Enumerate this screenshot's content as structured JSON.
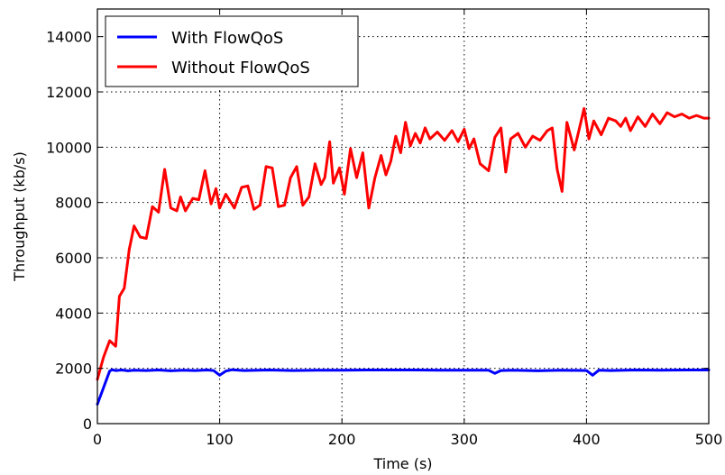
{
  "chart_data": {
    "type": "line",
    "title": "",
    "xlabel": "Time (s)",
    "ylabel": "Throughput (kb/s)",
    "xlim": [
      0,
      500
    ],
    "ylim": [
      0,
      15000
    ],
    "xticks": [
      0,
      100,
      200,
      300,
      400,
      500
    ],
    "yticks": [
      0,
      2000,
      4000,
      6000,
      8000,
      10000,
      12000,
      14000
    ],
    "xtick_labels": [
      "0",
      "100",
      "200",
      "300",
      "400",
      "500"
    ],
    "ytick_labels": [
      "0",
      "2000",
      "4000",
      "6000",
      "8000",
      "10000",
      "12000",
      "14000"
    ],
    "grid": true,
    "legend_position": "top-left",
    "series": [
      {
        "name": "With FlowQoS",
        "color": "#0000ff",
        "x": [
          0,
          5,
          10,
          12,
          15,
          20,
          25,
          30,
          40,
          50,
          60,
          70,
          80,
          90,
          95,
          100,
          105,
          110,
          120,
          140,
          160,
          180,
          200,
          220,
          240,
          260,
          280,
          300,
          320,
          325,
          330,
          340,
          360,
          380,
          400,
          405,
          410,
          420,
          440,
          460,
          480,
          500
        ],
        "y": [
          700,
          1300,
          1900,
          1950,
          1920,
          1940,
          1910,
          1930,
          1920,
          1940,
          1910,
          1930,
          1920,
          1940,
          1920,
          1750,
          1900,
          1950,
          1920,
          1940,
          1920,
          1930,
          1930,
          1940,
          1940,
          1940,
          1930,
          1930,
          1930,
          1820,
          1920,
          1930,
          1910,
          1930,
          1920,
          1750,
          1930,
          1920,
          1940,
          1930,
          1940,
          1940
        ]
      },
      {
        "name": "Without FlowQoS",
        "color": "#ff0000",
        "x": [
          0,
          5,
          10,
          15,
          18,
          22,
          26,
          30,
          35,
          40,
          45,
          50,
          55,
          60,
          65,
          68,
          72,
          78,
          83,
          88,
          93,
          97,
          100,
          105,
          112,
          118,
          123,
          128,
          133,
          138,
          143,
          148,
          153,
          158,
          163,
          168,
          173,
          178,
          183,
          186,
          190,
          193,
          198,
          202,
          207,
          212,
          217,
          222,
          227,
          232,
          236,
          240,
          244,
          248,
          252,
          256,
          260,
          264,
          268,
          272,
          278,
          284,
          290,
          295,
          300,
          304,
          308,
          313,
          320,
          325,
          330,
          334,
          338,
          344,
          350,
          356,
          362,
          368,
          372,
          376,
          380,
          384,
          390,
          394,
          398,
          402,
          406,
          412,
          418,
          424,
          428,
          432,
          436,
          442,
          448,
          454,
          460,
          466,
          472,
          478,
          484,
          490,
          496,
          500
        ],
        "y": [
          1600,
          2400,
          3000,
          2800,
          4600,
          4900,
          6300,
          7150,
          6750,
          6700,
          7850,
          7650,
          9200,
          7800,
          7700,
          8200,
          7700,
          8150,
          8100,
          9150,
          7950,
          8500,
          7800,
          8300,
          7800,
          8550,
          8600,
          7750,
          7900,
          9300,
          9250,
          7850,
          7900,
          8900,
          9300,
          7900,
          8200,
          9400,
          8650,
          8900,
          10200,
          8700,
          9250,
          8300,
          9950,
          8900,
          9800,
          7800,
          8900,
          9700,
          9000,
          9500,
          10400,
          9800,
          10900,
          10050,
          10500,
          10150,
          10700,
          10300,
          10550,
          10250,
          10600,
          10200,
          10650,
          9950,
          10300,
          9400,
          9150,
          10350,
          10700,
          9100,
          10300,
          10500,
          10000,
          10400,
          10250,
          10600,
          10700,
          9200,
          8400,
          10900,
          9900,
          10650,
          11400,
          10300,
          10950,
          10450,
          11050,
          10950,
          10750,
          11050,
          10600,
          11100,
          10750,
          11200,
          10850,
          11250,
          11100,
          11200,
          11050,
          11150,
          11050,
          11050
        ]
      }
    ]
  }
}
